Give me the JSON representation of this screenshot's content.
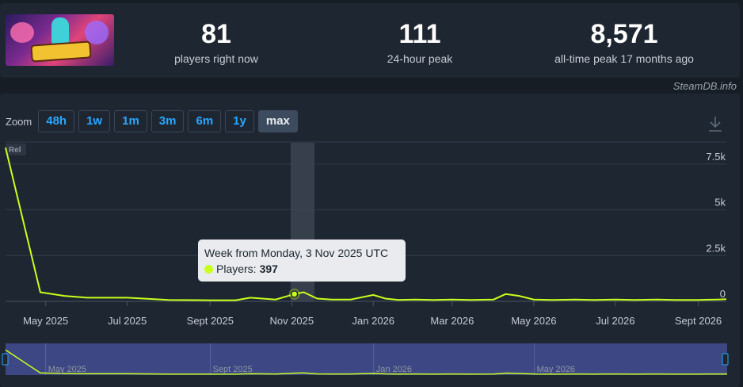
{
  "header": {
    "thumbnail_icon": "game-header-image",
    "stats": [
      {
        "value": "81",
        "label": "players right now"
      },
      {
        "value": "111",
        "label": "24-hour peak"
      },
      {
        "value": "8,571",
        "label": "all-time peak 17 months ago"
      }
    ],
    "credit": "SteamDB.info"
  },
  "zoom": {
    "label": "Zoom",
    "buttons": [
      "48h",
      "1w",
      "1m",
      "3m",
      "6m",
      "1y",
      "max"
    ],
    "active": "max"
  },
  "chart_data": {
    "type": "line",
    "series": [
      {
        "name": "Players",
        "color": "#c8ff1c",
        "x": [
          "2025-04-01",
          "2025-04-27",
          "2025-05-15",
          "2025-06-01",
          "2025-07-01",
          "2025-08-01",
          "2025-09-01",
          "2025-09-20",
          "2025-10-01",
          "2025-10-20",
          "2025-11-03",
          "2025-11-10",
          "2025-11-20",
          "2025-12-01",
          "2025-12-15",
          "2026-01-01",
          "2026-01-10",
          "2026-01-20",
          "2026-02-01",
          "2026-02-15",
          "2026-03-01",
          "2026-03-15",
          "2026-04-01",
          "2026-04-10",
          "2026-04-20",
          "2026-05-01",
          "2026-05-15",
          "2026-06-01",
          "2026-06-15",
          "2026-07-01",
          "2026-07-15",
          "2026-08-01",
          "2026-08-15",
          "2026-09-01",
          "2026-09-15",
          "2026-09-22"
        ],
        "values": [
          8400,
          500,
          300,
          200,
          200,
          80,
          60,
          60,
          200,
          100,
          397,
          500,
          150,
          100,
          100,
          350,
          150,
          80,
          100,
          80,
          100,
          80,
          100,
          400,
          300,
          100,
          80,
          100,
          80,
          100,
          80,
          100,
          80,
          80,
          100,
          120
        ]
      }
    ],
    "y_ticks": [
      "0",
      "2.5k",
      "5k",
      "7.5k"
    ],
    "y_tick_values": [
      0,
      2500,
      5000,
      7500
    ],
    "ylim": [
      0,
      8750
    ],
    "x_ticks": [
      "May 2025",
      "Jul 2025",
      "Sept 2025",
      "Nov 2025",
      "Jan 2026",
      "Mar 2026",
      "May 2026",
      "Jul 2026",
      "Sept 2026"
    ],
    "x_tick_dates": [
      "2025-05-01",
      "2025-07-01",
      "2025-09-01",
      "2025-11-01",
      "2026-01-01",
      "2026-03-01",
      "2026-05-01",
      "2026-07-01",
      "2026-09-01"
    ],
    "xlim": [
      "2025-04-01",
      "2026-09-22"
    ],
    "badge": "Rel",
    "grid": true,
    "highlight": {
      "date": "2025-11-03",
      "value": 397
    },
    "tooltip": {
      "title": "Week from Monday, 3 Nov 2025 UTC",
      "series_label": "Players:",
      "value": "397"
    },
    "navigator": {
      "ticks": [
        "May 2025",
        "Sept 2025",
        "Jan 2026",
        "May 2026"
      ],
      "tick_dates": [
        "2025-05-01",
        "2025-09-01",
        "2026-01-01",
        "2026-05-01"
      ]
    }
  }
}
